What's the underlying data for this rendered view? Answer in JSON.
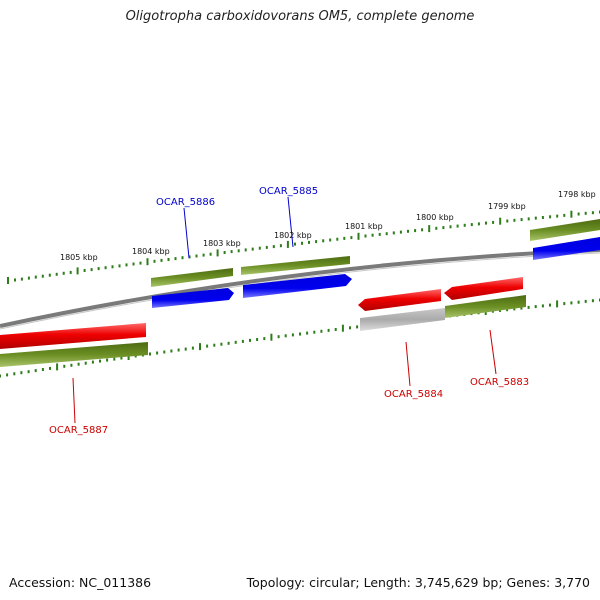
{
  "title": "Oligotropha carboxidovorans OM5, complete genome",
  "footer": {
    "accession": "Accession: NC_011386",
    "summary": "Topology: circular; Length: 3,745,629 bp; Genes: 3,770"
  },
  "colors": {
    "backbone": "#808080",
    "tick": "#2e7d1a",
    "gene_band": "#6b8e23",
    "forward": "#0000ee",
    "reverse": "#ee0000",
    "pseudo": "#b0b0b0",
    "label_forward": "#0000cc",
    "label_reverse": "#cc0000"
  },
  "scale_labels": [
    "1805 kbp",
    "1804 kbp",
    "1803 kbp",
    "1802 kbp",
    "1801 kbp",
    "1800 kbp",
    "1799 kbp",
    "1798 kbp"
  ],
  "genes": [
    {
      "id": "OCAR_5887",
      "strand": "reverse",
      "type": "cds"
    },
    {
      "id": "OCAR_5886",
      "strand": "forward",
      "type": "cds"
    },
    {
      "id": "OCAR_5885",
      "strand": "forward",
      "type": "cds"
    },
    {
      "id": "OCAR_5884",
      "strand": "reverse",
      "type": "cds"
    },
    {
      "id": "OCAR_5883",
      "strand": "reverse",
      "type": "cds"
    }
  ]
}
